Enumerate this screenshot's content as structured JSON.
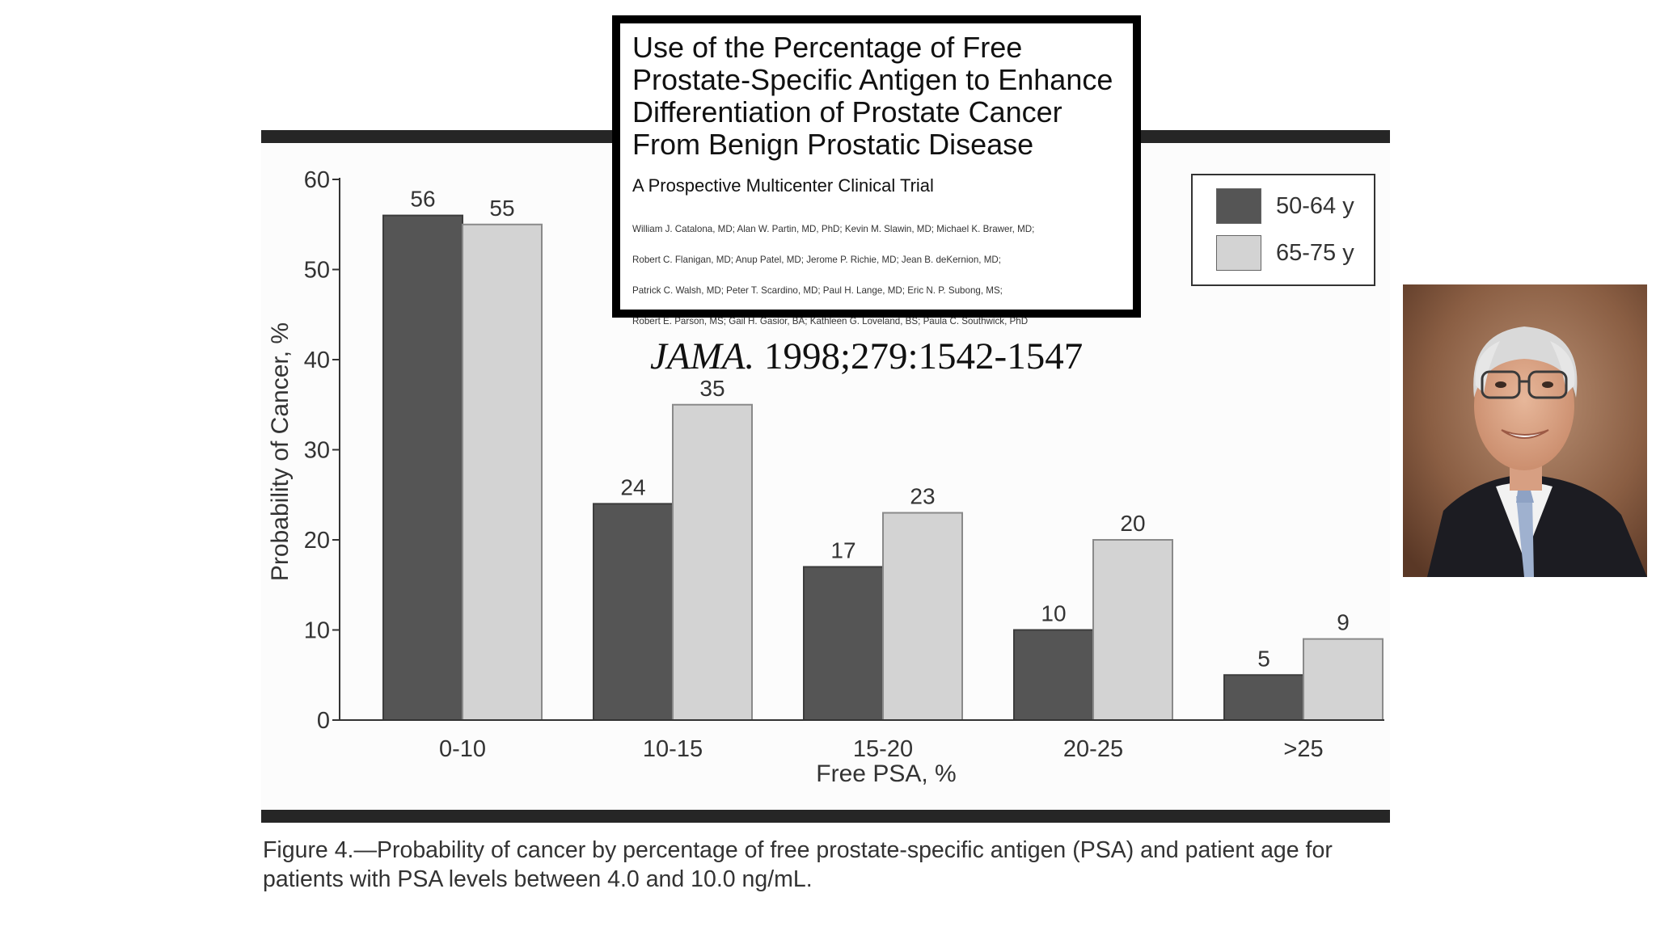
{
  "title_card": {
    "title_lines": [
      "Use of the Percentage of Free",
      "Prostate-Specific Antigen to Enhance",
      "Differentiation of Prostate Cancer",
      "From Benign Prostatic Disease"
    ],
    "subtitle": "A Prospective Multicenter Clinical Trial",
    "authors_lines": [
      "William J. Catalona, MD; Alan W. Partin, MD, PhD; Kevin M. Slawin, MD; Michael K. Brawer, MD;",
      "Robert C. Flanigan, MD; Anup Patel, MD; Jerome P. Richie, MD; Jean B. deKernion, MD;",
      "Patrick C. Walsh, MD; Peter T. Scardino, MD; Paul H. Lange, MD; Eric N. P. Subong, MS;",
      "Robert E. Parson, MS; Gail H. Gasior, BA; Kathleen G. Loveland, BS; Paula C. Southwick, PhD"
    ],
    "citation_journal": "JAMA.",
    "citation_rest": " 1998;279:1542-1547"
  },
  "caption": {
    "line1": "Figure 4.—Probability of cancer by percentage of free prostate-specific antigen (PSA) and patient age for",
    "line2": "patients with PSA levels between 4.0 and 10.0 ng/mL."
  },
  "colors": {
    "series_dark": "#555555",
    "series_light": "#d3d3d3",
    "rule": "#262626"
  },
  "photo": {
    "icon": "portrait-photo"
  },
  "chart_data": {
    "type": "bar",
    "xlabel": "Free PSA, %",
    "ylabel": "Probability of Cancer, %",
    "ylim": [
      0,
      60
    ],
    "yticks": [
      "0",
      "10",
      "20",
      "30",
      "40",
      "50",
      "60"
    ],
    "categories": [
      "0-10",
      "10-15",
      "15-20",
      "20-25",
      ">25"
    ],
    "series": [
      {
        "name": "50-64 y",
        "values": [
          56,
          24,
          17,
          10,
          5
        ],
        "labels": [
          "56",
          "24",
          "17",
          "10",
          "5"
        ]
      },
      {
        "name": "65-75 y",
        "values": [
          55,
          35,
          23,
          20,
          9
        ],
        "labels": [
          "55",
          "35",
          "23",
          "20",
          "9"
        ]
      }
    ],
    "grid": false,
    "legend": "top-right"
  }
}
